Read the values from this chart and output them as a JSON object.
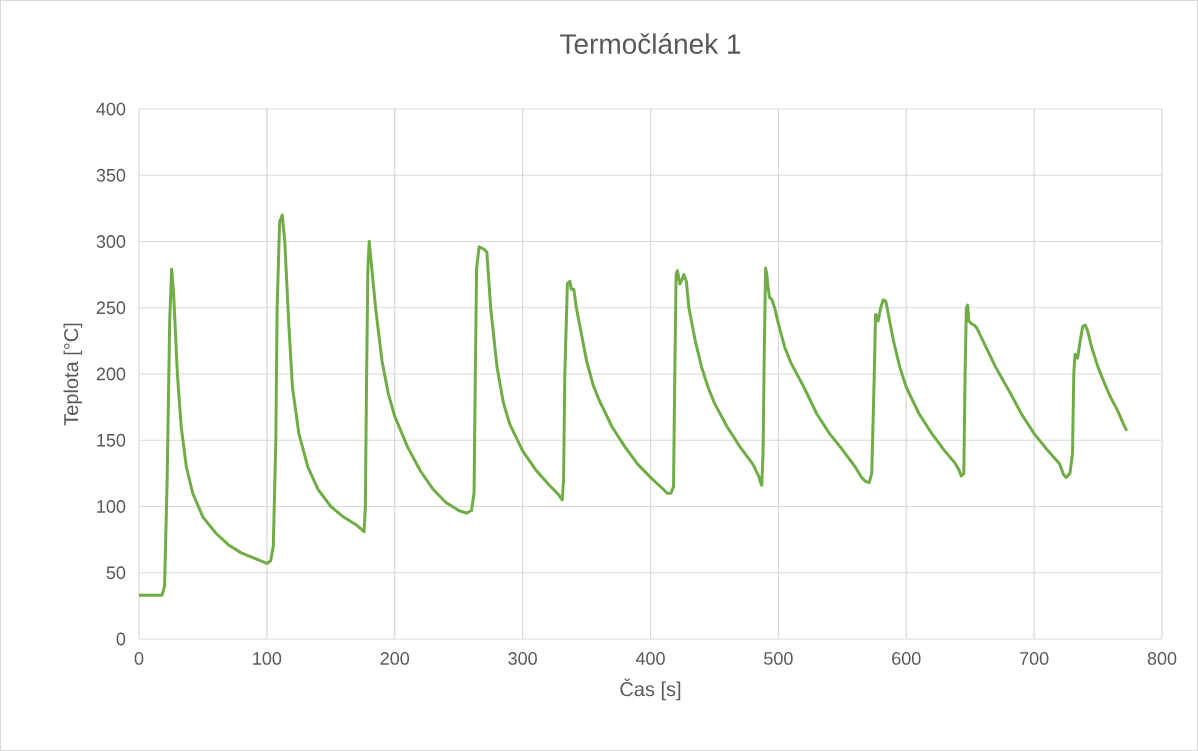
{
  "chart_data": {
    "type": "line",
    "title": "Termočlánek 1",
    "xlabel": "Čas [s]",
    "ylabel": "Teplota [°C]",
    "color": "#70ad47",
    "grid": true,
    "xlim": [
      0,
      800
    ],
    "ylim": [
      0,
      400
    ],
    "xticks": [
      0,
      100,
      200,
      300,
      400,
      500,
      600,
      700,
      800
    ],
    "yticks": [
      0,
      50,
      100,
      150,
      200,
      250,
      300,
      350,
      400
    ],
    "x": [
      0,
      18,
      20,
      22,
      24,
      25.5,
      27,
      30,
      33,
      37,
      42,
      50,
      60,
      70,
      80,
      90,
      100,
      103,
      105,
      107,
      108,
      110,
      112,
      114,
      117,
      120,
      125,
      132,
      140,
      150,
      160,
      170,
      175,
      176,
      177,
      178,
      179,
      180,
      182,
      185,
      190,
      195,
      200,
      210,
      220,
      230,
      240,
      250,
      256,
      260,
      262,
      263,
      264,
      266,
      270,
      272,
      275,
      280,
      285,
      290,
      300,
      310,
      320,
      328,
      331,
      332,
      333,
      335,
      337,
      338,
      340,
      342,
      347,
      350,
      355,
      360,
      370,
      380,
      390,
      400,
      410,
      413,
      416,
      418,
      419,
      420,
      421,
      423,
      425,
      426,
      428,
      430,
      435,
      440,
      445,
      450,
      460,
      470,
      480,
      485,
      486,
      487,
      488,
      489,
      490,
      491,
      492,
      493,
      495,
      497,
      500,
      505,
      510,
      520,
      530,
      540,
      550,
      560,
      565,
      568,
      571,
      573,
      575,
      576,
      577,
      578,
      580,
      582,
      584,
      587,
      590,
      595,
      600,
      610,
      620,
      630,
      638,
      641,
      643,
      645,
      646,
      647,
      648,
      649,
      651,
      653,
      655,
      660,
      670,
      680,
      690,
      700,
      710,
      720,
      723,
      725,
      728,
      730,
      731,
      732,
      733,
      734,
      736,
      738,
      740,
      742,
      745,
      750,
      755,
      760,
      765,
      770,
      772
    ],
    "values": [
      33,
      33,
      40,
      120,
      240,
      279,
      262,
      200,
      160,
      130,
      110,
      92,
      80,
      71,
      65,
      61,
      57,
      59,
      70,
      150,
      250,
      315,
      320,
      300,
      240,
      190,
      155,
      130,
      113,
      100,
      92,
      86,
      82,
      81,
      100,
      200,
      280,
      300,
      280,
      250,
      210,
      185,
      168,
      145,
      127,
      113,
      103,
      97,
      95,
      97,
      110,
      200,
      280,
      296,
      294,
      292,
      250,
      205,
      178,
      162,
      142,
      128,
      117,
      109,
      105,
      120,
      200,
      268,
      270,
      264,
      264,
      250,
      225,
      210,
      192,
      180,
      160,
      145,
      132,
      122,
      113,
      110,
      110,
      115,
      200,
      275,
      278,
      268,
      272,
      275,
      270,
      250,
      225,
      205,
      190,
      178,
      160,
      145,
      132,
      122,
      118,
      116,
      140,
      220,
      280,
      275,
      265,
      258,
      256,
      250,
      238,
      220,
      208,
      190,
      170,
      155,
      143,
      130,
      122,
      119,
      118,
      125,
      200,
      245,
      244,
      240,
      250,
      256,
      255,
      240,
      225,
      205,
      190,
      170,
      155,
      142,
      133,
      128,
      123,
      125,
      200,
      250,
      252,
      240,
      238,
      237,
      235,
      225,
      205,
      188,
      170,
      155,
      143,
      132,
      124,
      122,
      125,
      140,
      200,
      215,
      214,
      212,
      225,
      236,
      237,
      232,
      220,
      205,
      193,
      182,
      173,
      162,
      158
    ]
  }
}
